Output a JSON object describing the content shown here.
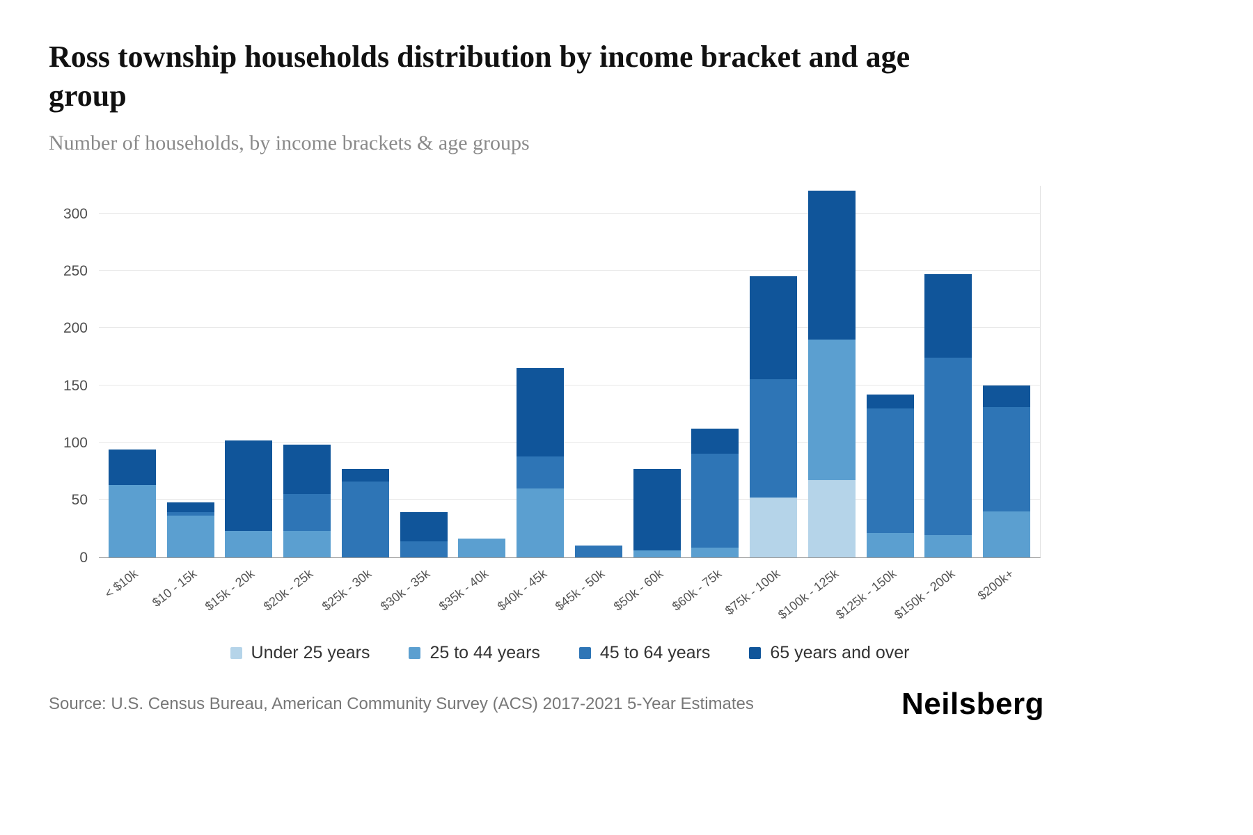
{
  "header": {
    "title": "Ross township households distribution by income bracket and age group",
    "subtitle": "Number of households, by income brackets & age groups"
  },
  "footer": {
    "source": "Source: U.S. Census Bureau, American Community Survey (ACS) 2017-2021 5-Year Estimates",
    "brand": "Neilsberg"
  },
  "chart_data": {
    "type": "bar",
    "stacked": true,
    "title": "Ross township households distribution by income bracket and age group",
    "subtitle": "Number of households, by income brackets & age groups",
    "xlabel": "",
    "ylabel": "",
    "ylim": [
      0,
      325
    ],
    "yticks": [
      0,
      50,
      100,
      150,
      200,
      250,
      300
    ],
    "grid": true,
    "legend_position": "bottom",
    "categories": [
      "< $10k",
      "$10 - 15k",
      "$15k - 20k",
      "$20k - 25k",
      "$25k - 30k",
      "$30k - 35k",
      "$35k - 40k",
      "$40k - 45k",
      "$45k - 50k",
      "$50k - 60k",
      "$60k - 75k",
      "$75k - 100k",
      "$100k - 125k",
      "$125k - 150k",
      "$150k - 200k",
      "$200k+"
    ],
    "series": [
      {
        "name": "Under 25 years",
        "color": "#b5d4e9",
        "values": [
          0,
          0,
          0,
          0,
          0,
          0,
          0,
          0,
          0,
          0,
          0,
          52,
          67,
          0,
          0,
          0
        ]
      },
      {
        "name": "25 to 44 years",
        "color": "#5b9fd0",
        "values": [
          63,
          36,
          23,
          23,
          0,
          0,
          16,
          60,
          0,
          6,
          8,
          0,
          123,
          21,
          19,
          40
        ]
      },
      {
        "name": "45 to 64 years",
        "color": "#2e75b6",
        "values": [
          0,
          3,
          0,
          32,
          66,
          14,
          0,
          28,
          10,
          0,
          82,
          103,
          0,
          109,
          155,
          91
        ]
      },
      {
        "name": "65 years and over",
        "color": "#10559a",
        "values": [
          31,
          9,
          79,
          43,
          11,
          25,
          0,
          77,
          0,
          71,
          22,
          90,
          130,
          12,
          73,
          19
        ]
      }
    ],
    "totals": [
      94,
      48,
      102,
      98,
      77,
      39,
      16,
      165,
      10,
      77,
      112,
      245,
      320,
      142,
      247,
      150
    ]
  }
}
